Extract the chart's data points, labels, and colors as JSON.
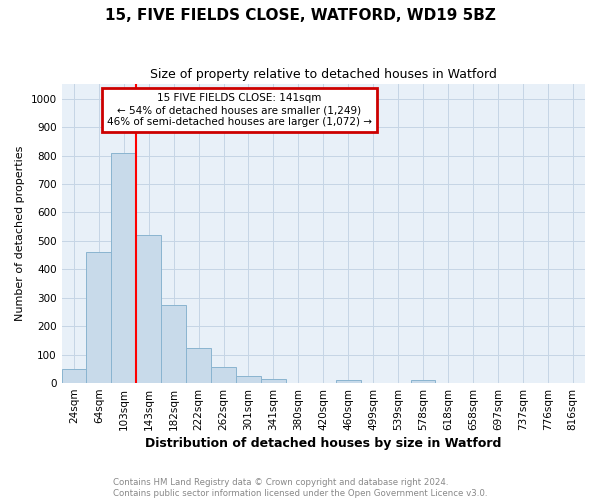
{
  "title": "15, FIVE FIELDS CLOSE, WATFORD, WD19 5BZ",
  "subtitle": "Size of property relative to detached houses in Watford",
  "xlabel": "Distribution of detached houses by size in Watford",
  "ylabel": "Number of detached properties",
  "categories": [
    "24sqm",
    "64sqm",
    "103sqm",
    "143sqm",
    "182sqm",
    "222sqm",
    "262sqm",
    "301sqm",
    "341sqm",
    "380sqm",
    "420sqm",
    "460sqm",
    "499sqm",
    "539sqm",
    "578sqm",
    "618sqm",
    "658sqm",
    "697sqm",
    "737sqm",
    "776sqm",
    "816sqm"
  ],
  "values": [
    48,
    460,
    810,
    520,
    275,
    125,
    57,
    25,
    14,
    0,
    0,
    12,
    0,
    0,
    10,
    0,
    0,
    0,
    0,
    0,
    0
  ],
  "bar_color": "#c8daea",
  "bar_edge_color": "#8ab4d0",
  "bar_width": 1.0,
  "red_line_x": 2.5,
  "annotation_line1": "15 FIVE FIELDS CLOSE: 141sqm",
  "annotation_line2": "← 54% of detached houses are smaller (1,249)",
  "annotation_line3": "46% of semi-detached houses are larger (1,072) →",
  "annotation_box_color": "#cc0000",
  "ylim": [
    0,
    1050
  ],
  "yticks": [
    0,
    100,
    200,
    300,
    400,
    500,
    600,
    700,
    800,
    900,
    1000
  ],
  "footer_line1": "Contains HM Land Registry data © Crown copyright and database right 2024.",
  "footer_line2": "Contains public sector information licensed under the Open Government Licence v3.0.",
  "plot_bg_color": "#e8f0f8",
  "grid_color": "#c5d5e5",
  "title_fontsize": 11,
  "subtitle_fontsize": 9,
  "xlabel_fontsize": 9,
  "ylabel_fontsize": 8,
  "tick_fontsize": 7.5
}
